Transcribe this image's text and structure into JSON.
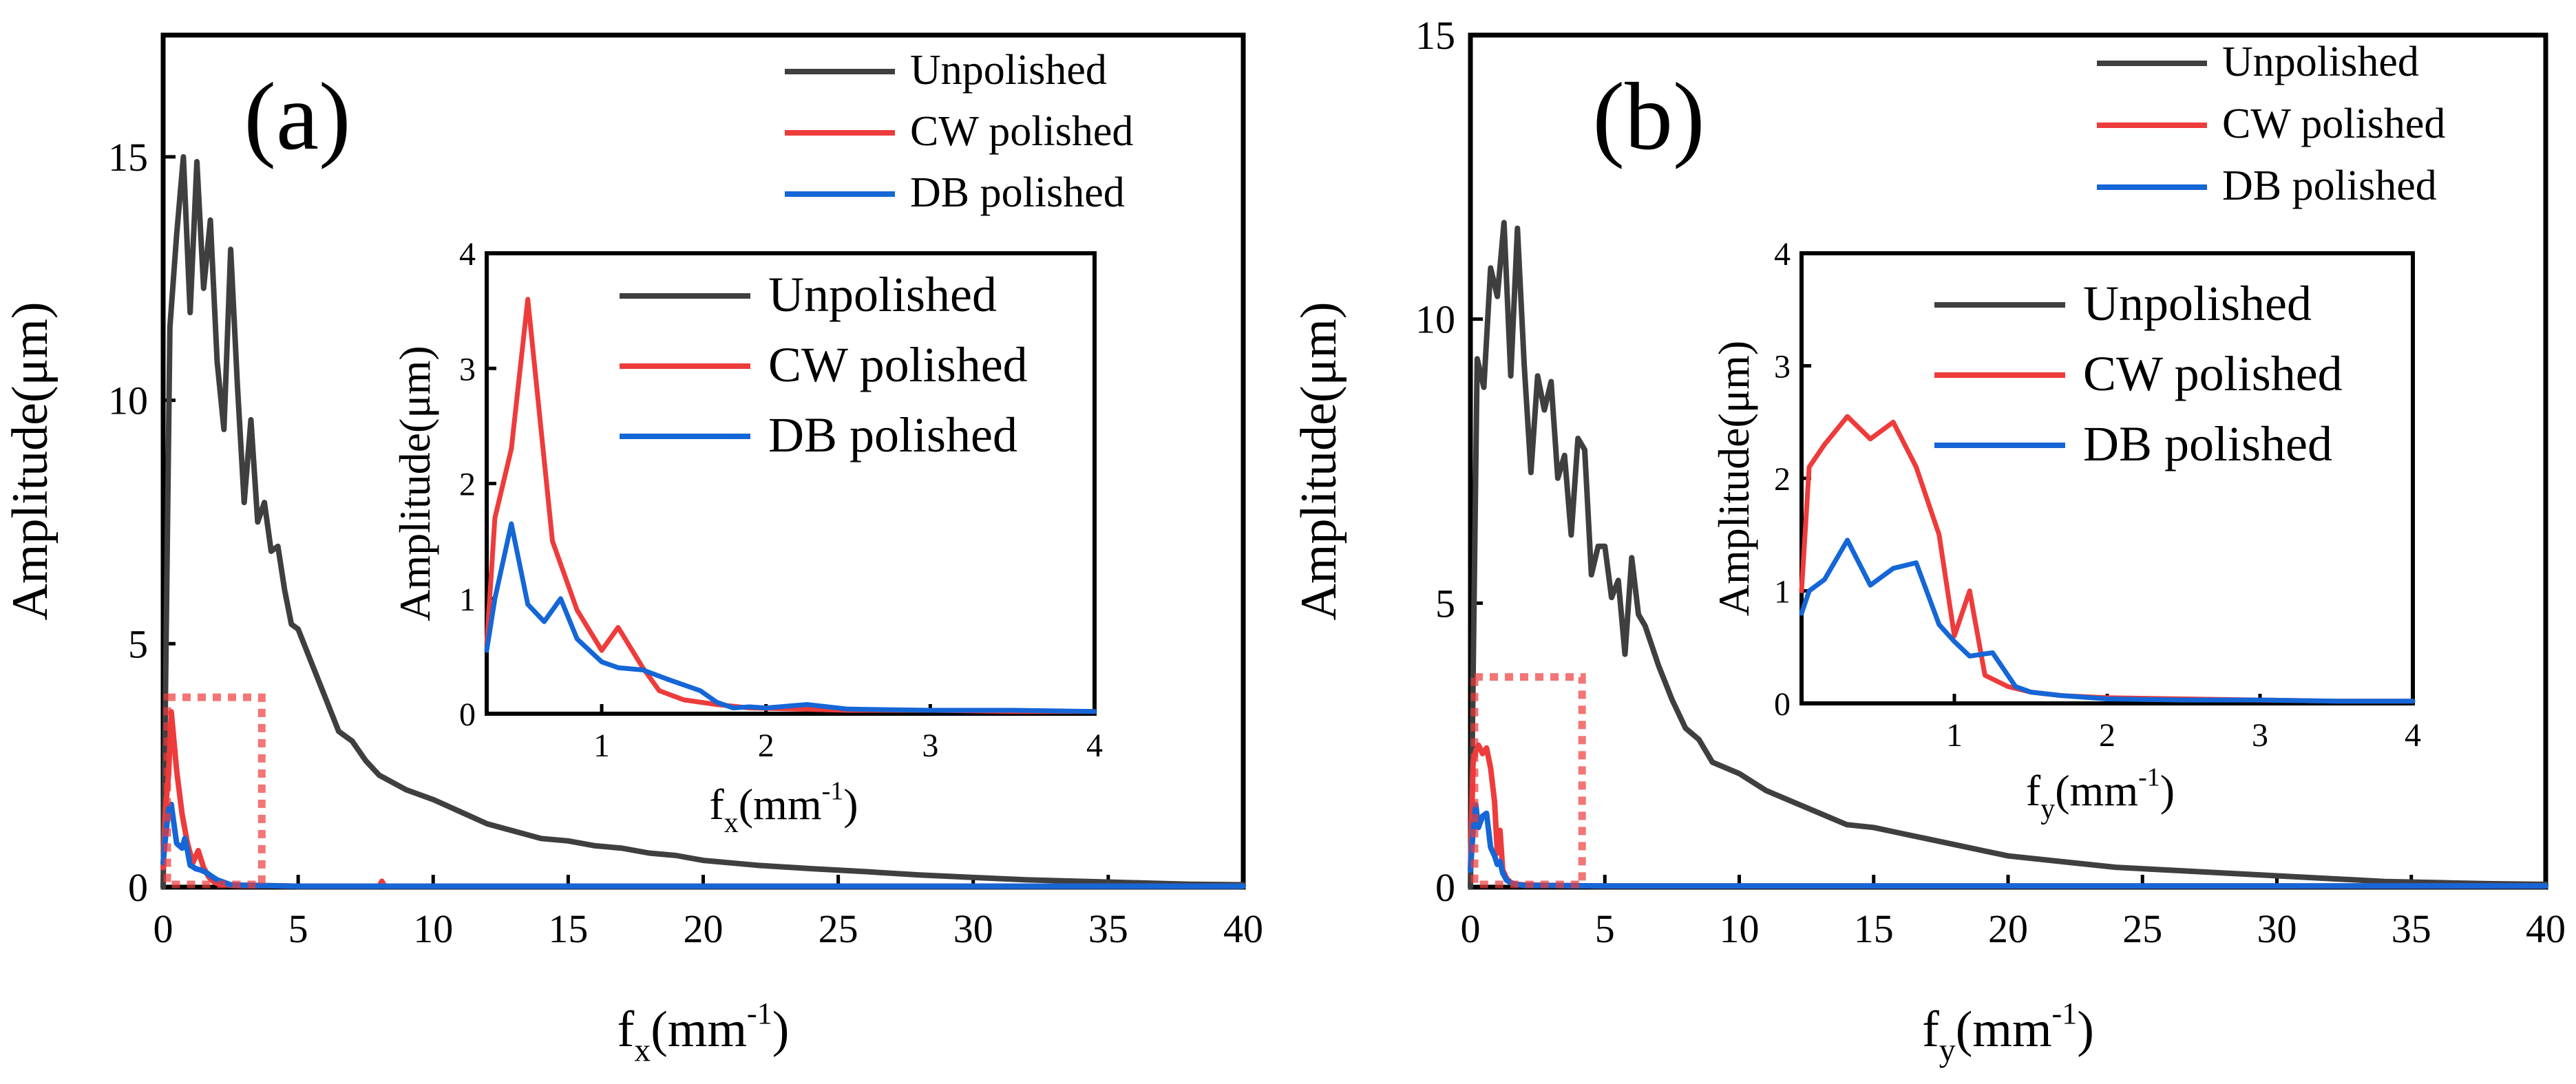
{
  "colors": {
    "unpolished": "#3f3f3f",
    "cw": "#ee3b3b",
    "db": "#1566d6",
    "zoom_box": "#ee3b3b"
  },
  "chart_data": [
    {
      "id": "a",
      "type": "line",
      "panel_label": "(a)",
      "xlabel": "f",
      "xlabel_sub": "x",
      "xlabel_unit": "(mm",
      "xlabel_sup": "-1",
      "xlabel_close": ")",
      "ylabel": "Amplitude(μm)",
      "xlim": [
        0,
        40
      ],
      "ylim": [
        0,
        17.5
      ],
      "xticks": [
        0,
        5,
        10,
        15,
        20,
        25,
        30,
        35,
        40
      ],
      "yticks": [
        0,
        5,
        10,
        15
      ],
      "legend": [
        "Unpolished",
        "CW polished",
        "DB polished"
      ],
      "legend_position": "top-right",
      "series": [
        {
          "name": "Unpolished",
          "color_key": "unpolished",
          "x": [
            0,
            0.25,
            0.5,
            0.75,
            1.0,
            1.25,
            1.5,
            1.75,
            2.0,
            2.25,
            2.5,
            2.75,
            3.0,
            3.25,
            3.5,
            3.75,
            4.0,
            4.25,
            4.5,
            4.75,
            5.0,
            5.5,
            6.0,
            6.5,
            7.0,
            7.5,
            8.0,
            9.0,
            10.0,
            11.0,
            12.0,
            13.0,
            14.0,
            15.0,
            16.0,
            17.0,
            18.0,
            19.0,
            20.0,
            22.0,
            24.0,
            26.0,
            28.0,
            30.0,
            32.0,
            34.0,
            36.0,
            38.0,
            40.0
          ],
          "y": [
            0,
            11.5,
            13.4,
            15.0,
            11.8,
            14.9,
            12.3,
            13.7,
            10.8,
            9.4,
            13.1,
            10.3,
            7.9,
            9.6,
            7.5,
            7.9,
            6.9,
            7.0,
            6.1,
            5.4,
            5.3,
            4.6,
            3.9,
            3.2,
            3.0,
            2.6,
            2.3,
            2.0,
            1.8,
            1.55,
            1.3,
            1.15,
            1.0,
            0.95,
            0.85,
            0.8,
            0.7,
            0.65,
            0.55,
            0.45,
            0.38,
            0.32,
            0.25,
            0.2,
            0.15,
            0.12,
            0.09,
            0.06,
            0.05
          ]
        },
        {
          "name": "CW polished",
          "color_key": "cw",
          "x": [
            0,
            0.1,
            0.2,
            0.3,
            0.5,
            0.7,
            0.9,
            1.1,
            1.3,
            1.5,
            1.7,
            1.9,
            2.1,
            2.5,
            3.0,
            4.0,
            5.0,
            8.0,
            8.1,
            8.2,
            10.0,
            20.0,
            30.0,
            40.0
          ],
          "y": [
            0.4,
            1.7,
            2.3,
            3.6,
            2.4,
            1.5,
            0.9,
            0.5,
            0.75,
            0.4,
            0.2,
            0.1,
            0.06,
            0.04,
            0.03,
            0.03,
            0.02,
            0.02,
            0.12,
            0.02,
            0.02,
            0.02,
            0.02,
            0.02
          ]
        },
        {
          "name": "DB polished",
          "color_key": "db",
          "x": [
            0,
            0.1,
            0.2,
            0.3,
            0.4,
            0.5,
            0.6,
            0.7,
            0.8,
            0.9,
            1.0,
            1.1,
            1.2,
            1.4,
            1.6,
            1.8,
            2.0,
            2.5,
            3.0,
            4.0,
            5.0,
            10.0,
            20.0,
            30.0,
            40.0
          ],
          "y": [
            0.5,
            1.1,
            1.6,
            1.7,
            1.3,
            0.9,
            0.85,
            0.8,
            1.0,
            0.75,
            0.45,
            0.42,
            0.38,
            0.35,
            0.3,
            0.22,
            0.15,
            0.05,
            0.04,
            0.03,
            0.02,
            0.02,
            0.02,
            0.02,
            0.02
          ]
        }
      ],
      "zoom_box": {
        "x": [
          0,
          3.5
        ],
        "y": [
          0,
          3.9
        ]
      },
      "inset": {
        "xlabel": "f",
        "xlabel_sub": "x",
        "xlabel_unit": "(mm",
        "xlabel_sup": "-1",
        "xlabel_close": ")",
        "ylabel": "Amplitude(μm)",
        "xlim": [
          0.3,
          4
        ],
        "ylim": [
          0,
          4
        ],
        "xticks": [
          1,
          2,
          3,
          4
        ],
        "yticks": [
          0,
          1,
          2,
          3,
          4
        ],
        "legend": [
          "Unpolished",
          "CW polished",
          "DB polished"
        ],
        "series": [
          {
            "name": "CW polished",
            "color_key": "cw",
            "x": [
              0.3,
              0.35,
              0.45,
              0.55,
              0.7,
              0.85,
              1.0,
              1.1,
              1.25,
              1.35,
              1.5,
              1.7,
              1.9,
              2.2,
              2.5,
              3.0,
              3.5,
              4.0
            ],
            "y": [
              0.6,
              1.7,
              2.3,
              3.6,
              1.5,
              0.9,
              0.55,
              0.75,
              0.4,
              0.2,
              0.12,
              0.08,
              0.05,
              0.04,
              0.03,
              0.03,
              0.02,
              0.02
            ]
          },
          {
            "name": "DB polished",
            "color_key": "db",
            "x": [
              0.3,
              0.35,
              0.45,
              0.55,
              0.65,
              0.75,
              0.85,
              1.0,
              1.1,
              1.25,
              1.4,
              1.5,
              1.6,
              1.7,
              1.8,
              1.9,
              2.0,
              2.25,
              2.5,
              3.0,
              3.5,
              4.0
            ],
            "y": [
              0.55,
              1.0,
              1.65,
              0.95,
              0.8,
              1.0,
              0.65,
              0.45,
              0.4,
              0.38,
              0.3,
              0.25,
              0.2,
              0.1,
              0.05,
              0.06,
              0.05,
              0.08,
              0.04,
              0.03,
              0.03,
              0.02
            ]
          }
        ]
      }
    },
    {
      "id": "b",
      "type": "line",
      "panel_label": "(b)",
      "xlabel": "f",
      "xlabel_sub": "y",
      "xlabel_unit": "(mm",
      "xlabel_sup": "-1",
      "xlabel_close": ")",
      "ylabel": "Amplitude(μm)",
      "xlim": [
        0,
        40
      ],
      "ylim": [
        0,
        15
      ],
      "xticks": [
        0,
        5,
        10,
        15,
        20,
        25,
        30,
        35,
        40
      ],
      "yticks": [
        0,
        5,
        10,
        15
      ],
      "legend": [
        "Unpolished",
        "CW polished",
        "DB polished"
      ],
      "legend_position": "top-right",
      "series": [
        {
          "name": "Unpolished",
          "color_key": "unpolished",
          "x": [
            0,
            0.25,
            0.5,
            0.75,
            1.0,
            1.25,
            1.5,
            1.75,
            2.0,
            2.25,
            2.5,
            2.75,
            3.0,
            3.25,
            3.5,
            3.75,
            4.0,
            4.25,
            4.5,
            4.75,
            5.0,
            5.25,
            5.5,
            5.75,
            6.0,
            6.25,
            6.5,
            7.0,
            7.5,
            8.0,
            8.5,
            9.0,
            10.0,
            11.0,
            12.0,
            13.0,
            14.0,
            15.0,
            16.0,
            17.0,
            18.0,
            19.0,
            20.0,
            22.0,
            24.0,
            26.0,
            28.0,
            30.0,
            32.0,
            34.0,
            36.0,
            38.0,
            40.0
          ],
          "y": [
            0,
            9.3,
            8.8,
            10.9,
            10.4,
            11.7,
            9.0,
            11.6,
            9.2,
            7.3,
            9.0,
            8.4,
            8.9,
            7.2,
            7.6,
            6.2,
            7.9,
            7.7,
            5.5,
            6.0,
            6.0,
            5.1,
            5.4,
            4.1,
            5.8,
            4.8,
            4.6,
            3.9,
            3.3,
            2.8,
            2.6,
            2.2,
            2.0,
            1.7,
            1.5,
            1.3,
            1.1,
            1.05,
            0.95,
            0.85,
            0.75,
            0.65,
            0.55,
            0.45,
            0.35,
            0.3,
            0.25,
            0.2,
            0.15,
            0.1,
            0.08,
            0.06,
            0.05
          ]
        },
        {
          "name": "CW polished",
          "color_key": "cw",
          "x": [
            0,
            0.1,
            0.2,
            0.3,
            0.45,
            0.6,
            0.75,
            0.9,
            1.0,
            1.1,
            1.2,
            1.35,
            1.5,
            1.7,
            2.0,
            3.0,
            5.0,
            10.0,
            20.0,
            30.0,
            40.0
          ],
          "y": [
            0.3,
            2.2,
            2.4,
            2.5,
            2.35,
            2.45,
            2.1,
            1.5,
            0.6,
            1.0,
            0.3,
            0.15,
            0.08,
            0.05,
            0.04,
            0.03,
            0.02,
            0.02,
            0.02,
            0.02,
            0.02
          ]
        },
        {
          "name": "DB polished",
          "color_key": "db",
          "x": [
            0,
            0.1,
            0.2,
            0.3,
            0.45,
            0.6,
            0.75,
            0.9,
            1.0,
            1.1,
            1.2,
            1.35,
            1.5,
            1.7,
            2.0,
            3.0,
            5.0,
            10.0,
            20.0,
            30.0,
            40.0
          ],
          "y": [
            0.3,
            1.0,
            1.45,
            1.05,
            1.25,
            1.3,
            0.7,
            0.55,
            0.4,
            0.45,
            0.25,
            0.12,
            0.08,
            0.05,
            0.03,
            0.03,
            0.02,
            0.02,
            0.02,
            0.02,
            0.02
          ]
        }
      ],
      "zoom_box": {
        "x": [
          0,
          4.0
        ],
        "y": [
          0,
          3.7
        ]
      },
      "inset": {
        "xlabel": "f",
        "xlabel_sub": "y",
        "xlabel_unit": "(mm",
        "xlabel_sup": "-1",
        "xlabel_close": ")",
        "ylabel": "Amplitude(μm)",
        "xlim": [
          0,
          4
        ],
        "ylim": [
          0,
          4
        ],
        "xticks": [
          1,
          2,
          3,
          4
        ],
        "yticks": [
          0,
          1,
          2,
          3,
          4
        ],
        "legend": [
          "Unpolished",
          "CW polished",
          "DB polished"
        ],
        "series": [
          {
            "name": "CW polished",
            "color_key": "cw",
            "x": [
              0,
              0.05,
              0.15,
              0.3,
              0.45,
              0.6,
              0.75,
              0.9,
              1.0,
              1.1,
              1.2,
              1.35,
              1.5,
              1.7,
              2.0,
              2.5,
              3.0,
              3.5,
              4.0
            ],
            "y": [
              1.0,
              2.1,
              2.3,
              2.55,
              2.35,
              2.5,
              2.1,
              1.5,
              0.6,
              1.0,
              0.25,
              0.15,
              0.1,
              0.07,
              0.05,
              0.04,
              0.03,
              0.02,
              0.02
            ]
          },
          {
            "name": "DB polished",
            "color_key": "db",
            "x": [
              0,
              0.05,
              0.15,
              0.3,
              0.45,
              0.6,
              0.75,
              0.9,
              1.0,
              1.1,
              1.25,
              1.4,
              1.5,
              1.7,
              2.0,
              2.5,
              3.0,
              3.5,
              4.0
            ],
            "y": [
              0.8,
              1.0,
              1.1,
              1.45,
              1.05,
              1.2,
              1.25,
              0.7,
              0.55,
              0.42,
              0.45,
              0.15,
              0.1,
              0.07,
              0.04,
              0.03,
              0.03,
              0.02,
              0.02
            ]
          }
        ]
      }
    }
  ]
}
